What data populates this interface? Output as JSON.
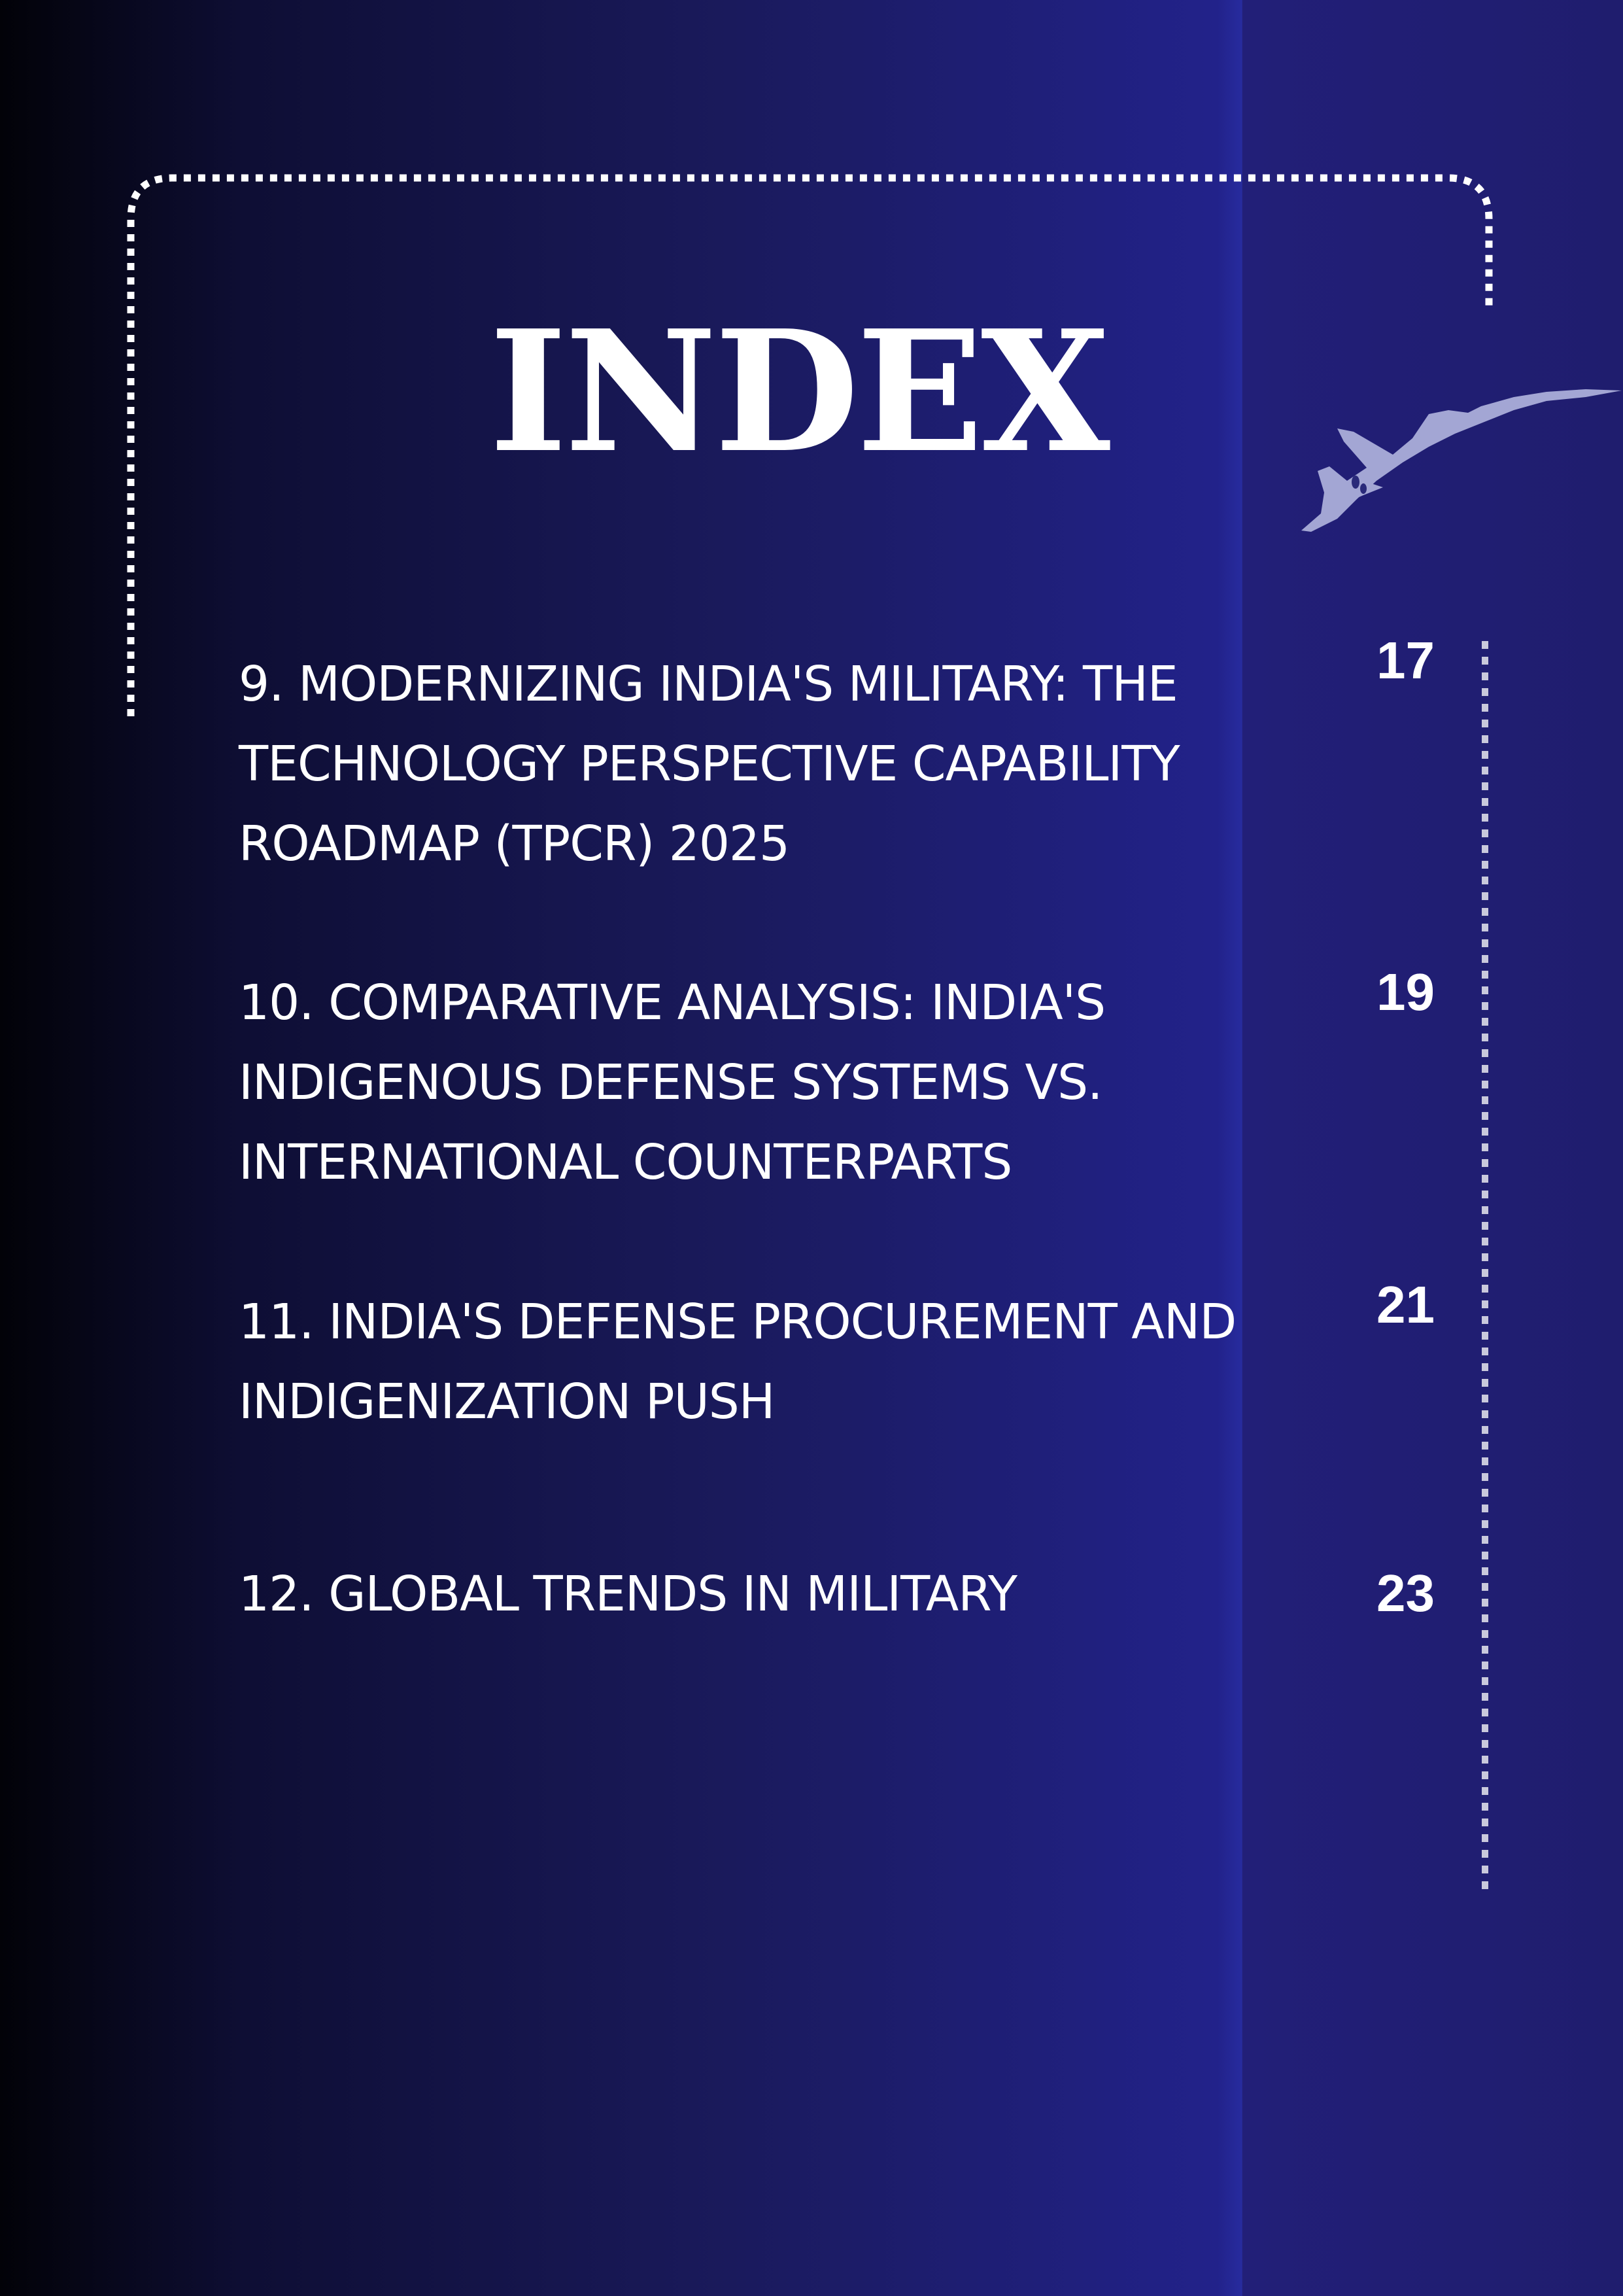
{
  "page": {
    "title": "INDEX",
    "colors": {
      "background_left": "#020208",
      "background_right": "#272b9e",
      "text": "#ffffff",
      "jet": "#a3a6d4"
    },
    "decoration_icon": "fighter-jet-icon"
  },
  "entries": [
    {
      "title": "9. MODERNIZING INDIA'S MILITARY: THE TECHNOLOGY PERSPECTIVE CAPABILITY ROADMAP (TPCR) 2025",
      "page": "17"
    },
    {
      "title": "10. COMPARATIVE ANALYSIS: INDIA'S INDIGENOUS DEFENSE SYSTEMS VS. INTERNATIONAL COUNTERPARTS",
      "page": "19"
    },
    {
      "title": "11. INDIA'S DEFENSE PROCUREMENT AND INDIGENIZATION PUSH",
      "page": "21"
    },
    {
      "title": "12. GLOBAL TRENDS IN MILITARY",
      "page": "23"
    }
  ]
}
